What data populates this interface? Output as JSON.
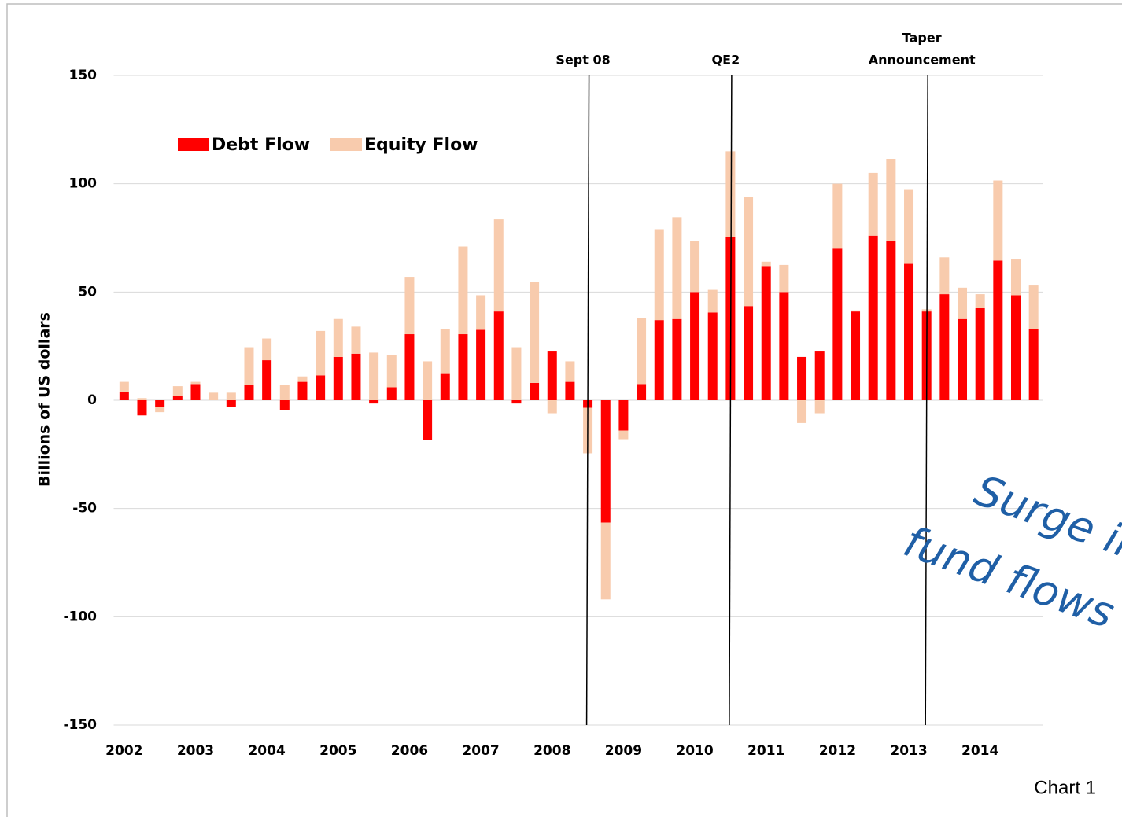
{
  "chart_data": {
    "type": "stacked_bar",
    "y_label": "Billions of US dollars",
    "categories": [
      "2002",
      null,
      null,
      null,
      "2003",
      null,
      null,
      null,
      "2004",
      null,
      null,
      null,
      "2005",
      null,
      null,
      null,
      "2006",
      null,
      null,
      null,
      "2007",
      null,
      null,
      null,
      "2008",
      null,
      null,
      null,
      "2009",
      null,
      null,
      null,
      "2010",
      null,
      null,
      null,
      "2011",
      null,
      null,
      null,
      "2012",
      null,
      null,
      null,
      "2013",
      null,
      null,
      null,
      "2014",
      null,
      null,
      null
    ],
    "series": [
      {
        "name": "Debt Flow",
        "color": "#ff0000",
        "values": [
          4,
          -7,
          -3,
          2,
          7.5,
          0,
          -3,
          7,
          18.5,
          -4.5,
          8.5,
          11.5,
          20,
          21.5,
          -1.5,
          6,
          30.5,
          -18.5,
          12.5,
          30.5,
          32.5,
          41,
          -1.5,
          8,
          22.5,
          8.5,
          -3.5,
          -56.5,
          -14,
          7.5,
          37,
          37.5,
          50,
          40.5,
          75.5,
          43.5,
          62,
          50,
          20,
          22.5,
          70,
          41,
          76,
          73.5,
          63,
          41,
          49,
          37.5,
          42.5,
          64.5,
          48.5,
          33
        ]
      },
      {
        "name": "Equity Flow",
        "color": "#f8cbad",
        "values": [
          4.5,
          1,
          -2.5,
          4.5,
          1,
          3.5,
          3.5,
          17.5,
          10,
          7,
          2.5,
          20.5,
          17.5,
          12.5,
          22,
          15,
          26.5,
          18,
          20.5,
          40.5,
          16,
          42.5,
          24.5,
          46.5,
          -6,
          9.5,
          -21,
          -35.5,
          -4,
          30.5,
          42,
          47,
          23.5,
          10.5,
          39.5,
          50.5,
          2,
          12.5,
          -10.5,
          -6,
          30,
          0.5,
          29,
          38,
          34.5,
          1,
          17,
          14.5,
          6.5,
          37,
          16.5,
          20
        ]
      }
    ],
    "ylim": [
      -150,
      150
    ],
    "yticks": [
      -150,
      -100,
      -50,
      0,
      50,
      100,
      150
    ],
    "grid": true,
    "legend": "top-left",
    "events": [
      {
        "label": [
          "Sept 08"
        ],
        "x": 26.5
      },
      {
        "label": [
          "QE2"
        ],
        "x": 34.5
      },
      {
        "label": [
          "Taper",
          "Announcement"
        ],
        "x": 45.5
      }
    ],
    "annotation": [
      "Surge in",
      "fund flows"
    ],
    "footnote": "Chart 1"
  }
}
